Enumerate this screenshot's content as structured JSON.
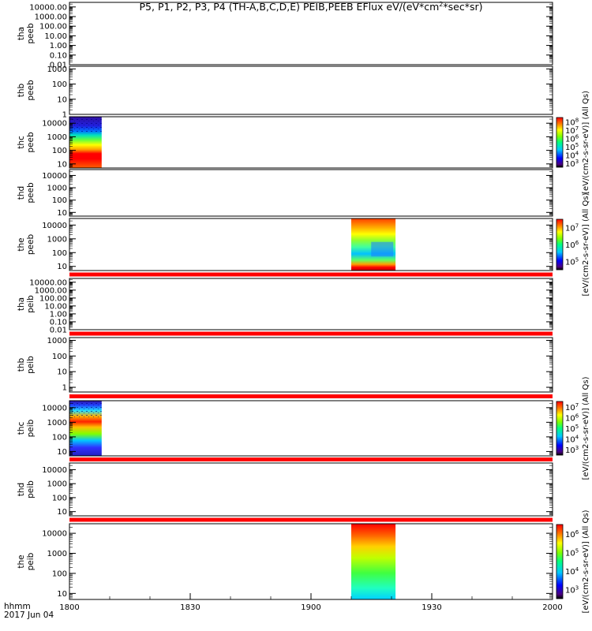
{
  "title": {
    "prefix": "P5, P1, P2, P3, P4 (TH-A,B,C,D,E) PEIB,PEEB EFlux eV/(eV*cm",
    "sup": "2",
    "suffix": "*sec*sr)"
  },
  "footer": {
    "line1": "hhmm",
    "line2": "2017 Jun 04"
  },
  "chart_data": {
    "type": "heatmap",
    "x_ticks": [
      "1800",
      "1830",
      "1900",
      "1930",
      "2000"
    ],
    "x_range_minutes": [
      0,
      120
    ],
    "panels": [
      {
        "probe": "tha",
        "product": "peeb",
        "y_ticks": [
          "0.01",
          "0.10",
          "1.00",
          "10.00",
          "100.00",
          "1000.00",
          "10000.00"
        ],
        "ylim": [
          0.01,
          30000
        ],
        "data_blocks": [],
        "colorbar": null,
        "gap_bar_after": false
      },
      {
        "probe": "thb",
        "product": "peeb",
        "y_ticks": [
          "1",
          "10",
          "100",
          "1000"
        ],
        "ylim": [
          1,
          1500
        ],
        "data_blocks": [],
        "colorbar": null,
        "gap_bar_after": false
      },
      {
        "probe": "thc",
        "product": "peeb",
        "y_ticks": [
          "10",
          "100",
          "1000",
          "10000"
        ],
        "ylim": [
          5,
          30000
        ],
        "data_blocks": [
          {
            "x_start": "1800",
            "x_end": "1808",
            "profile": "thc-peeb"
          }
        ],
        "colorbar": {
          "ticks": [
            "10^3",
            "10^4",
            "10^5",
            "10^6",
            "10^7",
            "10^8"
          ],
          "label": "[eV/(cm2-s-sr-eV)] (All Qs)"
        },
        "gap_bar_after": false
      },
      {
        "probe": "thd",
        "product": "peeb",
        "y_ticks": [
          "10",
          "100",
          "1000",
          "10000"
        ],
        "ylim": [
          5,
          30000
        ],
        "data_blocks": [],
        "colorbar": null,
        "gap_bar_after": false
      },
      {
        "probe": "the",
        "product": "peeb",
        "y_ticks": [
          "10",
          "100",
          "1000",
          "10000"
        ],
        "ylim": [
          5,
          30000
        ],
        "data_blocks": [
          {
            "x_start": "1910",
            "x_end": "1921",
            "profile": "the-peeb"
          }
        ],
        "colorbar": {
          "ticks": [
            "10^5",
            "10^6",
            "10^7"
          ],
          "label": "[eV/(cm2-s-sr-eV)] (All Qs)"
        },
        "gap_bar_after": true
      },
      {
        "probe": "tha",
        "product": "peib",
        "y_ticks": [
          "0.01",
          "0.10",
          "1.00",
          "10.00",
          "100.00",
          "1000.00",
          "10000.00"
        ],
        "ylim": [
          0.01,
          30000
        ],
        "data_blocks": [],
        "colorbar": null,
        "gap_bar_after": true
      },
      {
        "probe": "thb",
        "product": "peib",
        "y_ticks": [
          "1",
          "10",
          "100",
          "1000"
        ],
        "ylim": [
          0.5,
          1500
        ],
        "data_blocks": [],
        "colorbar": null,
        "gap_bar_after": true
      },
      {
        "probe": "thc",
        "product": "peib",
        "y_ticks": [
          "10",
          "100",
          "1000",
          "10000"
        ],
        "ylim": [
          5,
          30000
        ],
        "data_blocks": [
          {
            "x_start": "1800",
            "x_end": "1808",
            "profile": "thc-peib"
          }
        ],
        "colorbar": {
          "ticks": [
            "10^3",
            "10^4",
            "10^5",
            "10^6",
            "10^7"
          ],
          "label": "[eV/(cm2-s-sr-eV)] (All Qs)"
        },
        "gap_bar_after": true
      },
      {
        "probe": "thd",
        "product": "peib",
        "y_ticks": [
          "10",
          "100",
          "1000",
          "10000"
        ],
        "ylim": [
          5,
          30000
        ],
        "data_blocks": [],
        "colorbar": null,
        "gap_bar_after": true
      },
      {
        "probe": "the",
        "product": "peib",
        "y_ticks": [
          "10",
          "100",
          "1000",
          "10000"
        ],
        "ylim": [
          5,
          30000
        ],
        "data_blocks": [
          {
            "x_start": "1910",
            "x_end": "1921",
            "profile": "the-peib"
          }
        ],
        "colorbar": {
          "ticks": [
            "10^3",
            "10^4",
            "10^5",
            "10^6"
          ],
          "label": "[eV/(cm2-s-sr-eV)] (All Qs)"
        },
        "gap_bar_after": false
      }
    ],
    "colors": {
      "gap_bar": "#ff0000",
      "frame": "#000000"
    }
  }
}
